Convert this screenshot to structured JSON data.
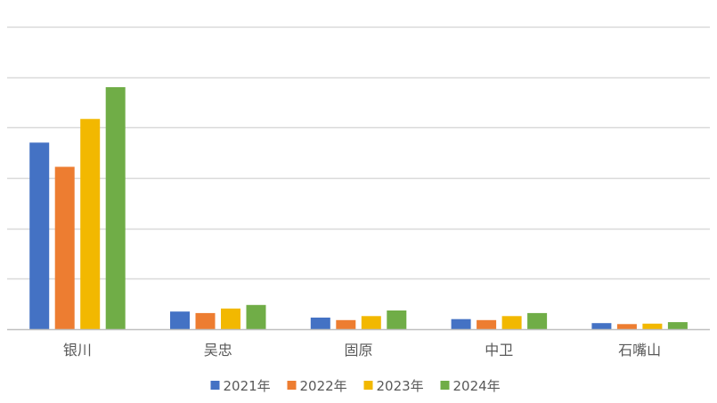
{
  "chart_data": {
    "type": "bar",
    "categories": [
      "银川",
      "吴忠",
      "固原",
      "中卫",
      "石嘴山"
    ],
    "series": [
      {
        "name": "2021年",
        "color": "#4472C4",
        "values": [
          3.7,
          0.35,
          0.23,
          0.2,
          0.12
        ]
      },
      {
        "name": "2022年",
        "color": "#ED7D31",
        "values": [
          3.22,
          0.32,
          0.18,
          0.18,
          0.1
        ]
      },
      {
        "name": "2023年",
        "color": "#F2B800",
        "values": [
          4.17,
          0.41,
          0.26,
          0.26,
          0.11
        ]
      },
      {
        "name": "2024年",
        "color": "#70AD47",
        "values": [
          4.8,
          0.48,
          0.37,
          0.32,
          0.14
        ]
      }
    ],
    "title": "",
    "xlabel": "",
    "ylabel": "",
    "ylim": [
      0,
      6
    ],
    "grid": true,
    "y_tick_labels_shown": false,
    "legend_position": "bottom",
    "gridline_color": "#D9D9D9",
    "axis_line_color": "#BFBFBF",
    "text_color": "#595959"
  }
}
